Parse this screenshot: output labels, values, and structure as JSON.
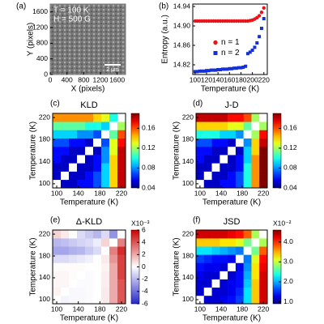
{
  "chart_data": [
    {
      "type": "image",
      "panel": "(a)",
      "annotations": [
        "T = 100 K",
        "H = 500 G"
      ],
      "scale_bar": "2 μm",
      "xlabel": "X (pixels)",
      "ylabel": "Y (pixels)",
      "xlim": [
        0,
        1800
      ],
      "ylim": [
        0,
        1800
      ],
      "xticks": [
        0,
        400,
        800,
        1200,
        1600
      ],
      "yticks": [
        0,
        400,
        800,
        1200,
        1600
      ],
      "color": "#7a7a7a"
    },
    {
      "type": "scatter",
      "panel": "(b)",
      "xlabel": "Temperature (K)",
      "ylabel": "Entropy (a.u.)",
      "xlim": [
        96,
        226
      ],
      "ylim": [
        14.8,
        14.945
      ],
      "xticks": [
        100,
        120,
        140,
        160,
        180,
        200,
        220
      ],
      "yticks": [
        14.82,
        14.86,
        {
          "value": 14.9,
          "label": "14.90"
        },
        14.94
      ],
      "legend": "center right",
      "x": [
        100,
        104,
        108,
        112,
        116,
        120,
        124,
        128,
        132,
        136,
        140,
        144,
        148,
        152,
        156,
        160,
        164,
        168,
        172,
        176,
        180,
        184,
        188,
        192,
        196,
        200,
        204,
        208,
        212,
        216,
        220
      ],
      "series": [
        {
          "name": "n = 1",
          "color": "#e8141c",
          "marker": "circle",
          "values": [
            14.91,
            14.91,
            14.91,
            14.91,
            14.91,
            14.91,
            14.91,
            14.91,
            14.91,
            14.91,
            14.91,
            14.91,
            14.91,
            14.91,
            14.91,
            14.91,
            14.91,
            14.91,
            14.91,
            14.91,
            14.91,
            14.91,
            14.91,
            14.91,
            14.911,
            14.912,
            14.914,
            14.917,
            14.921,
            14.928,
            14.937
          ]
        },
        {
          "name": "n = 2",
          "color": "#1430d8",
          "marker": "square",
          "values": [
            14.806,
            14.806,
            14.807,
            14.807,
            14.807,
            14.808,
            14.808,
            14.809,
            14.809,
            14.809,
            14.81,
            14.81,
            14.811,
            14.811,
            14.811,
            14.812,
            14.812,
            14.813,
            14.813,
            14.814,
            14.814,
            14.815,
            14.817,
            14.843,
            14.846,
            14.85,
            14.856,
            14.865,
            14.878,
            14.895,
            14.915
          ]
        }
      ]
    },
    {
      "type": "heatmap",
      "panel": "(c)",
      "title": "KLD",
      "xlabel": "Temperature (K)",
      "ylabel": "Temperature (K)",
      "colormap": "jet",
      "diagonal_color": "#ffffff",
      "clim": [
        0.04,
        0.19
      ],
      "cticks": [
        0.04,
        0.08,
        0.12,
        0.16
      ],
      "xlim": [
        92.5,
        227.5
      ],
      "ylim": [
        92.5,
        227.5
      ],
      "xticks": [
        100,
        140,
        180,
        220
      ],
      "yticks": [
        100,
        140,
        180,
        220
      ],
      "x": [
        100,
        115,
        130,
        145,
        160,
        175,
        190,
        205,
        220
      ],
      "y": [
        100,
        115,
        130,
        145,
        160,
        175,
        190,
        205,
        220
      ],
      "z": [
        [
          0,
          0.05,
          0.05,
          0.06,
          0.06,
          0.07,
          0.09,
          0.14,
          0.18
        ],
        [
          0.05,
          0,
          0.05,
          0.05,
          0.06,
          0.07,
          0.09,
          0.14,
          0.18
        ],
        [
          0.05,
          0.05,
          0,
          0.05,
          0.05,
          0.06,
          0.09,
          0.14,
          0.18
        ],
        [
          0.06,
          0.05,
          0.05,
          0,
          0.05,
          0.06,
          0.08,
          0.14,
          0.18
        ],
        [
          0.06,
          0.06,
          0.05,
          0.05,
          0,
          0.05,
          0.08,
          0.13,
          0.18
        ],
        [
          0.07,
          0.07,
          0.06,
          0.06,
          0.05,
          0,
          0.07,
          0.13,
          0.17
        ],
        [
          0.09,
          0.09,
          0.09,
          0.08,
          0.08,
          0.07,
          0,
          0.11,
          0.16
        ],
        [
          0.11,
          0.11,
          0.11,
          0.11,
          0.1,
          0.1,
          0.09,
          0,
          0.12
        ],
        [
          0.15,
          0.15,
          0.15,
          0.15,
          0.15,
          0.14,
          0.13,
          0.1,
          0
        ]
      ]
    },
    {
      "type": "heatmap",
      "panel": "(d)",
      "title": "J-D",
      "xlabel": "Temperature (K)",
      "ylabel": "Temperature (K)",
      "colormap": "jet",
      "diagonal_color": "#ffffff",
      "clim": [
        0.04,
        0.19
      ],
      "cticks": [
        0.04,
        0.08,
        0.12,
        0.16
      ],
      "xlim": [
        92.5,
        227.5
      ],
      "ylim": [
        92.5,
        227.5
      ],
      "xticks": [
        100,
        140,
        180,
        220
      ],
      "yticks": [
        100,
        140,
        180,
        220
      ],
      "x": [
        100,
        115,
        130,
        145,
        160,
        175,
        190,
        205,
        220
      ],
      "y": [
        100,
        115,
        130,
        145,
        160,
        175,
        190,
        205,
        220
      ],
      "z": [
        [
          0,
          0.05,
          0.05,
          0.06,
          0.06,
          0.07,
          0.1,
          0.15,
          0.19
        ],
        [
          0.05,
          0,
          0.05,
          0.05,
          0.06,
          0.07,
          0.1,
          0.15,
          0.19
        ],
        [
          0.05,
          0.05,
          0,
          0.05,
          0.05,
          0.06,
          0.1,
          0.15,
          0.19
        ],
        [
          0.06,
          0.05,
          0.05,
          0,
          0.05,
          0.06,
          0.09,
          0.15,
          0.19
        ],
        [
          0.06,
          0.06,
          0.05,
          0.05,
          0,
          0.05,
          0.09,
          0.14,
          0.19
        ],
        [
          0.07,
          0.07,
          0.06,
          0.06,
          0.05,
          0,
          0.08,
          0.14,
          0.18
        ],
        [
          0.1,
          0.1,
          0.1,
          0.09,
          0.09,
          0.08,
          0,
          0.12,
          0.17
        ],
        [
          0.14,
          0.14,
          0.14,
          0.14,
          0.13,
          0.13,
          0.11,
          0,
          0.12
        ],
        [
          0.18,
          0.18,
          0.18,
          0.18,
          0.17,
          0.17,
          0.16,
          0.12,
          0
        ]
      ]
    },
    {
      "type": "heatmap",
      "panel": "(e)",
      "title": "Δ-KLD",
      "multiplier": "X10⁻³",
      "xlabel": "Temperature (K)",
      "ylabel": "Temperature (K)",
      "colormap": "bwr",
      "diagonal_color": "#ffffff",
      "clim": [
        -6,
        6
      ],
      "cticks": [
        -6,
        -4,
        -2,
        0,
        2,
        4,
        6
      ],
      "xlim": [
        92.5,
        227.5
      ],
      "ylim": [
        92.5,
        227.5
      ],
      "xticks": [
        100,
        140,
        180,
        220
      ],
      "yticks": [
        100,
        140,
        180,
        220
      ],
      "x": [
        100,
        115,
        130,
        145,
        160,
        175,
        190,
        205,
        220
      ],
      "y": [
        100,
        115,
        130,
        145,
        160,
        175,
        190,
        205,
        220
      ],
      "z": [
        [
          0,
          -0.3,
          -0.2,
          -0.2,
          -0.1,
          0,
          0.5,
          2,
          4
        ],
        [
          0.3,
          0,
          -0.2,
          -0.2,
          -0.1,
          0,
          0.5,
          2,
          4
        ],
        [
          0.2,
          0.2,
          0,
          -0.1,
          -0.1,
          0,
          0.4,
          2,
          4
        ],
        [
          0.2,
          0.2,
          0.1,
          0,
          -0.1,
          0,
          0.4,
          2,
          4.5
        ],
        [
          0.1,
          0.1,
          0.1,
          0.1,
          0,
          0,
          0.3,
          2,
          4.5
        ],
        [
          -1,
          -1,
          -0.8,
          -0.6,
          -0.4,
          0,
          0.5,
          2.5,
          4.5
        ],
        [
          -2.5,
          -2.5,
          -2.2,
          -2,
          -1.5,
          -1,
          0,
          3,
          5
        ],
        [
          -2,
          -1.8,
          -1.5,
          -1.2,
          -1,
          -0.5,
          1,
          0,
          3
        ],
        [
          1,
          0.5,
          0,
          -1,
          -1.5,
          -2,
          -1,
          -3,
          0
        ]
      ]
    },
    {
      "type": "heatmap",
      "panel": "(f)",
      "title": "JSD",
      "multiplier": "X10⁻²",
      "xlabel": "Temperature (K)",
      "ylabel": "Temperature (K)",
      "colormap": "jet",
      "diagonal_color": "#ffffff",
      "clim": [
        0.9,
        4.6
      ],
      "cticks": [
        {
          "value": 1,
          "label": "1.0"
        },
        {
          "value": 2,
          "label": "2.0"
        },
        {
          "value": 3,
          "label": "3.0"
        },
        {
          "value": 4,
          "label": "4.0"
        }
      ],
      "xlim": [
        92.5,
        227.5
      ],
      "ylim": [
        92.5,
        227.5
      ],
      "xticks": [
        100,
        140,
        180,
        220
      ],
      "yticks": [
        100,
        140,
        180,
        220
      ],
      "x": [
        100,
        115,
        130,
        145,
        160,
        175,
        190,
        205,
        220
      ],
      "y": [
        100,
        115,
        130,
        145,
        160,
        175,
        190,
        205,
        220
      ],
      "z": [
        [
          0,
          1.2,
          1.2,
          1.3,
          1.4,
          1.6,
          2.2,
          3.4,
          4.3
        ],
        [
          1.2,
          0,
          1.2,
          1.2,
          1.3,
          1.5,
          2.2,
          3.4,
          4.3
        ],
        [
          1.2,
          1.2,
          0,
          1.2,
          1.3,
          1.4,
          2.1,
          3.4,
          4.3
        ],
        [
          1.3,
          1.2,
          1.2,
          0,
          1.2,
          1.4,
          2,
          3.3,
          4.3
        ],
        [
          1.4,
          1.3,
          1.3,
          1.2,
          0,
          1.3,
          1.9,
          3.3,
          4.2
        ],
        [
          1.6,
          1.5,
          1.4,
          1.4,
          1.3,
          0,
          1.8,
          3.1,
          4.1
        ],
        [
          2.2,
          2.2,
          2.1,
          2,
          1.9,
          1.8,
          0,
          2.7,
          3.8
        ],
        [
          3.4,
          3.4,
          3.4,
          3.3,
          3.3,
          3.1,
          2.7,
          0,
          2.9
        ],
        [
          4.3,
          4.3,
          4.3,
          4.3,
          4.2,
          4.1,
          3.8,
          2.9,
          0
        ]
      ]
    }
  ]
}
